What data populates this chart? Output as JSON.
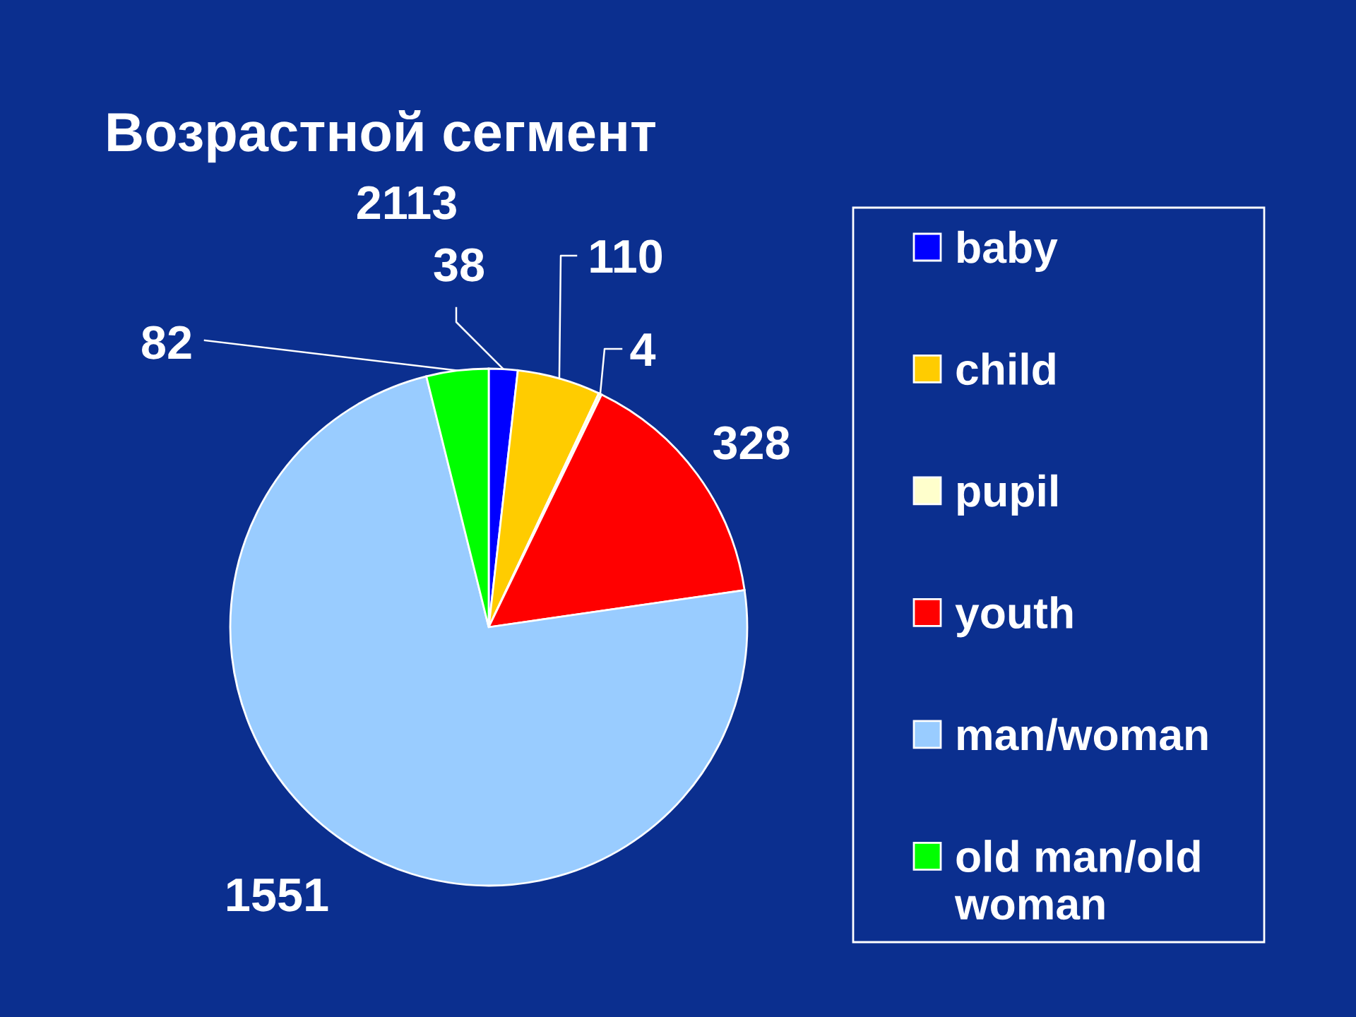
{
  "chart_data": {
    "type": "pie",
    "title": "Возрастной сегмент",
    "categories": [
      "baby",
      "child",
      "pupil",
      "youth",
      "man/woman",
      "old man/old woman"
    ],
    "values": [
      38,
      110,
      4,
      328,
      1551,
      82
    ],
    "colors": [
      "#0000ff",
      "#ffcc00",
      "#ffffcc",
      "#ff0000",
      "#99ccff",
      "#00ff00"
    ],
    "data_labels": true,
    "legend": "right",
    "annotations": [
      "2113"
    ]
  }
}
